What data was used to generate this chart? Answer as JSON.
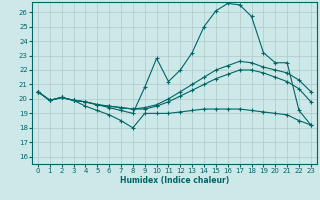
{
  "xlabel": "Humidex (Indice chaleur)",
  "bg_color": "#cce8e8",
  "line_color": "#006666",
  "grid_color": "#b0c8c8",
  "xlim": [
    -0.5,
    23.5
  ],
  "ylim": [
    15.5,
    26.7
  ],
  "yticks": [
    16,
    17,
    18,
    19,
    20,
    21,
    22,
    23,
    24,
    25,
    26
  ],
  "xticks": [
    0,
    1,
    2,
    3,
    4,
    5,
    6,
    7,
    8,
    9,
    10,
    11,
    12,
    13,
    14,
    15,
    16,
    17,
    18,
    19,
    20,
    21,
    22,
    23
  ],
  "series": {
    "max": [
      20.5,
      19.9,
      20.1,
      19.9,
      19.8,
      19.6,
      19.4,
      19.2,
      19.0,
      20.8,
      22.8,
      21.2,
      22.0,
      23.2,
      25.0,
      26.1,
      26.6,
      26.5,
      25.7,
      23.2,
      22.5,
      22.5,
      19.2,
      18.2
    ],
    "avg2": [
      20.5,
      19.9,
      20.1,
      19.9,
      19.8,
      19.6,
      19.5,
      19.4,
      19.3,
      19.4,
      19.6,
      20.0,
      20.5,
      21.0,
      21.5,
      22.0,
      22.3,
      22.6,
      22.5,
      22.2,
      22.0,
      21.8,
      21.3,
      20.5
    ],
    "avg1": [
      20.5,
      19.9,
      20.1,
      19.9,
      19.8,
      19.6,
      19.5,
      19.4,
      19.3,
      19.3,
      19.5,
      19.8,
      20.2,
      20.6,
      21.0,
      21.4,
      21.7,
      22.0,
      22.0,
      21.8,
      21.5,
      21.2,
      20.7,
      19.8
    ],
    "min": [
      20.5,
      19.9,
      20.1,
      19.9,
      19.5,
      19.2,
      18.9,
      18.5,
      18.0,
      19.0,
      19.0,
      19.0,
      19.1,
      19.2,
      19.3,
      19.3,
      19.3,
      19.3,
      19.2,
      19.1,
      19.0,
      18.9,
      18.5,
      18.2
    ]
  }
}
